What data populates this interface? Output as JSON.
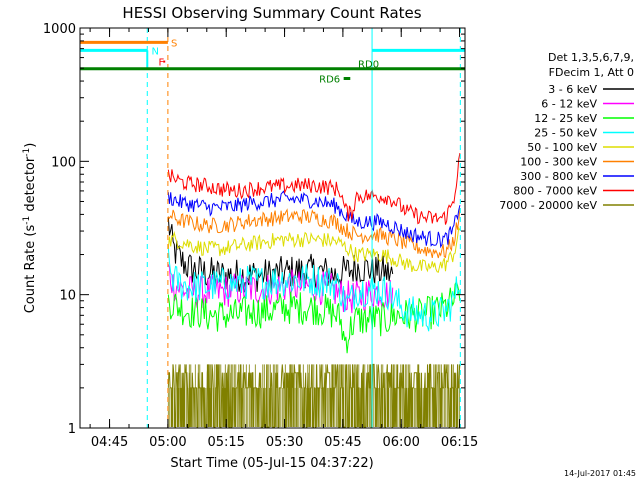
{
  "chart_data": {
    "type": "line",
    "title": "HESSI Observing Summary Count Rates",
    "xlabel": "Start Time (05-Jul-15 04:37:22)",
    "ylabel_main": "Count Rate (s",
    "ylabel_sup1": "-1",
    "ylabel_mid": " detector",
    "ylabel_sup2": "-1",
    "ylabel_end": ")",
    "timestamp": "14-Jul-2017 01:45",
    "x_unit": "minutes after 04:37:22 (UT)",
    "xlim": [
      0,
      99
    ],
    "ylim": [
      1,
      1000
    ],
    "yscale": "log",
    "x_ticks": [
      {
        "label": "04:45",
        "value": 7.6
      },
      {
        "label": "05:00",
        "value": 22.6
      },
      {
        "label": "05:15",
        "value": 37.6
      },
      {
        "label": "05:30",
        "value": 52.6
      },
      {
        "label": "05:45",
        "value": 67.6
      },
      {
        "label": "06:00",
        "value": 82.6
      },
      {
        "label": "06:15",
        "value": 97.6
      }
    ],
    "y_ticks": [
      {
        "label": "1",
        "value": 1
      },
      {
        "label": "10",
        "value": 10
      },
      {
        "label": "100",
        "value": 100
      },
      {
        "label": "1000",
        "value": 1000
      }
    ],
    "legend": {
      "header1": "Det 1,3,5,6,7,9,",
      "header2": "FDecim 1, Att 0",
      "placement": "right"
    },
    "series": [
      {
        "name": "3 - 6 keV",
        "color": "#000000",
        "x": [
          22.7,
          24,
          26,
          28,
          30,
          33,
          36,
          40,
          44,
          48,
          52,
          56,
          60,
          64,
          66,
          67,
          69,
          71,
          73,
          75,
          77,
          79,
          80.6
        ],
        "y": [
          35,
          22,
          18,
          16,
          15,
          14.5,
          14,
          14,
          14,
          14,
          14.5,
          15,
          15,
          14.5,
          14,
          14.5,
          15,
          16,
          16,
          15.5,
          15,
          14.5,
          14
        ]
      },
      {
        "name": "6 - 12 keV",
        "color": "#ff00ff",
        "x": [
          22.7,
          24,
          26,
          28,
          30,
          33,
          36,
          40,
          44,
          48,
          52,
          56,
          60,
          64,
          66,
          67,
          69,
          71,
          73,
          75,
          77,
          79,
          80.6
        ],
        "y": [
          15,
          12,
          11,
          10.5,
          10.5,
          10.5,
          10.5,
          11,
          11,
          11,
          11.5,
          11.5,
          11.5,
          11,
          10.5,
          10,
          9.5,
          9.5,
          10,
          10.5,
          10.5,
          10,
          10
        ]
      },
      {
        "name": "12 - 25 keV",
        "color": "#00ff00",
        "x": [
          22.7,
          24,
          26,
          28,
          30,
          33,
          36,
          40,
          44,
          48,
          52,
          56,
          60,
          64,
          66,
          67,
          68,
          69,
          70,
          71,
          73,
          75,
          77,
          79,
          81,
          84,
          88,
          91,
          94,
          96,
          97.7
        ],
        "y": [
          9,
          8.5,
          8,
          7.5,
          7.5,
          7,
          7,
          7,
          7.5,
          7.5,
          8,
          8,
          8,
          7.5,
          7,
          6.5,
          4.5,
          5,
          6,
          6.5,
          6.5,
          6.5,
          6.5,
          6.5,
          7,
          7,
          7,
          7.5,
          8,
          9,
          11
        ]
      },
      {
        "name": "25 - 50 keV",
        "color": "#00ffff",
        "x": [
          22.7,
          24,
          26,
          28,
          30,
          33,
          36,
          40,
          44,
          48,
          52,
          56,
          60,
          64,
          66,
          67,
          68,
          69,
          70,
          71,
          73,
          75,
          77,
          79,
          81,
          84,
          88,
          91,
          94,
          96,
          97.7
        ],
        "y": [
          17,
          13,
          12,
          11.5,
          11.5,
          11.5,
          12,
          12,
          12.5,
          12.5,
          13,
          13,
          13,
          12.5,
          12,
          11,
          9,
          8.5,
          9.5,
          11,
          11,
          11,
          11,
          10.5,
          9,
          7.5,
          7,
          7,
          7.5,
          9,
          13
        ]
      },
      {
        "name": "50 - 100 keV",
        "color": "#dddd00",
        "x": [
          22.7,
          24,
          26,
          28,
          30,
          33,
          36,
          40,
          44,
          48,
          52,
          56,
          60,
          64,
          66,
          67,
          68,
          69,
          70,
          71,
          73,
          75,
          77,
          79,
          81,
          84,
          88,
          91,
          94,
          96,
          97.7
        ],
        "y": [
          25,
          26,
          25,
          24,
          23,
          22,
          22,
          23,
          24,
          25,
          26,
          26,
          26,
          25.5,
          25,
          24,
          23,
          22,
          21,
          20,
          20,
          20,
          20,
          19.5,
          18.5,
          17,
          16,
          16,
          17,
          20,
          30
        ]
      },
      {
        "name": "100 - 300 keV",
        "color": "#ff8000",
        "x": [
          22.7,
          24,
          26,
          28,
          30,
          33,
          36,
          40,
          44,
          48,
          52,
          56,
          60,
          64,
          66,
          67,
          68,
          69,
          70,
          71,
          73,
          75,
          77,
          79,
          81,
          84,
          88,
          91,
          94,
          96,
          97.7
        ],
        "y": [
          40,
          38,
          36,
          35,
          34,
          33,
          33,
          34,
          36,
          37,
          38,
          39,
          38,
          36,
          35,
          33,
          31,
          30,
          29,
          28,
          28,
          28,
          28,
          27,
          26,
          24,
          22,
          21,
          21,
          25,
          40
        ]
      },
      {
        "name": "300 - 800 keV",
        "color": "#0000ff",
        "x": [
          22.7,
          24,
          26,
          28,
          30,
          33,
          36,
          40,
          44,
          48,
          52,
          56,
          60,
          64,
          66,
          67,
          68,
          69,
          70,
          71,
          73,
          75,
          77,
          79,
          81,
          84,
          88,
          91,
          94,
          96,
          97.7
        ],
        "y": [
          55,
          52,
          49,
          48,
          47,
          45,
          45,
          46,
          49,
          50,
          52,
          52,
          51,
          48,
          46,
          43,
          40,
          38,
          36,
          35,
          35,
          35,
          35,
          34,
          32,
          29,
          27,
          26,
          26,
          30,
          50
        ]
      },
      {
        "name": "800 - 7000 keV",
        "color": "#ff0000",
        "x": [
          22.7,
          24,
          26,
          28,
          30,
          33,
          36,
          40,
          44,
          48,
          52,
          56,
          60,
          64,
          66,
          67,
          68,
          69,
          70,
          71,
          73,
          75,
          77,
          79,
          81,
          84,
          88,
          91,
          94,
          96,
          97.7
        ],
        "y": [
          78,
          75,
          70,
          68,
          67,
          65,
          62,
          60,
          62,
          64,
          65,
          66,
          66,
          64,
          62,
          60,
          45,
          40,
          42,
          55,
          55,
          55,
          55,
          54,
          50,
          42,
          38,
          37,
          38,
          50,
          110
        ]
      },
      {
        "name": "7000 - 20000 keV",
        "color": "#808000",
        "x": [
          22.7,
          30,
          40,
          50,
          60,
          66,
          70,
          74,
          78,
          82,
          86,
          90,
          94,
          97.7
        ],
        "y": [
          1.9,
          2.1,
          1.9,
          2.1,
          1.9,
          2.6,
          2.3,
          2.2,
          2.3,
          2.2,
          1.9,
          2.0,
          2.0,
          2.0
        ]
      }
    ],
    "flag_lines": [
      {
        "label": "S",
        "color": "#ff8000",
        "level": 780,
        "x_start": 0,
        "x_end": 22.6,
        "label_x": 23.4
      },
      {
        "label": "N",
        "color": "#00ffff",
        "level": 680,
        "x_start": 0,
        "x_end": 17.3,
        "label_x": 18.4
      },
      {
        "label": "F",
        "color": "#ff0000",
        "level": 560,
        "x_start": 20.2,
        "x_end": 20.2,
        "label_x": 20.2
      },
      {
        "label": "RD0",
        "color": "#008000",
        "level": 495,
        "x_start": 0,
        "x_end": 99,
        "label_x": 71.5
      },
      {
        "label": "RD6",
        "color": "#008000",
        "level": 418,
        "x_start": 67.8,
        "x_end": 69.5,
        "label_x": 61.5
      }
    ],
    "vertical_markers": [
      {
        "kind": "dashed",
        "color": "#00ffff",
        "x": 17.3
      },
      {
        "kind": "dashed",
        "color": "#ff8000",
        "x": 22.6
      },
      {
        "kind": "solid",
        "color": "#00ffff",
        "x": 75.1
      },
      {
        "kind": "dashed",
        "color": "#00ffff",
        "x": 97.8
      }
    ],
    "grid": false
  }
}
